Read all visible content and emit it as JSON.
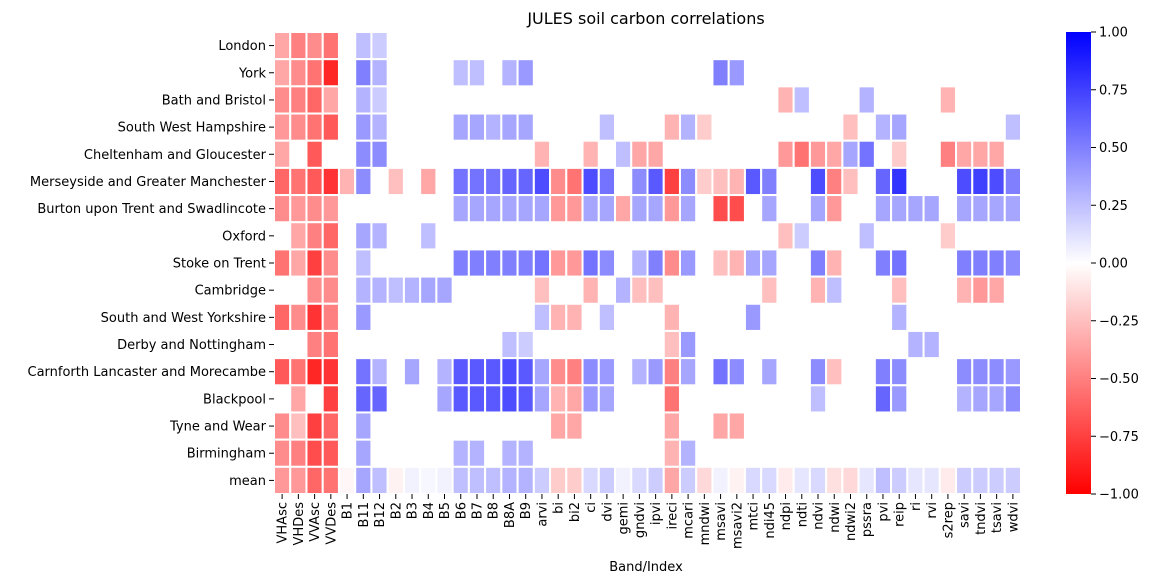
{
  "chart_data": {
    "type": "heatmap",
    "title": "JULES soil carbon correlations",
    "xlabel": "Band/Index",
    "ylabel": "",
    "columns": [
      "VHAsc",
      "VHDes",
      "VVAsc",
      "VVDes",
      "B1",
      "B11",
      "B12",
      "B2",
      "B3",
      "B4",
      "B5",
      "B6",
      "B7",
      "B8",
      "B8A",
      "B9",
      "arvi",
      "bi",
      "bi2",
      "ci",
      "dvi",
      "gemi",
      "gndvi",
      "ipvi",
      "ireci",
      "mcari",
      "mndwi",
      "msavi",
      "msavi2",
      "mtci",
      "ndi45",
      "ndpi",
      "ndti",
      "ndvi",
      "ndwi",
      "ndwi2",
      "pssra",
      "pvi",
      "reip",
      "ri",
      "rvi",
      "s2rep",
      "savi",
      "tndvi",
      "tsavi",
      "wdvi"
    ],
    "x_tick_labels": [
      "VHAsc",
      "VVAsc",
      "B1",
      "B12",
      "B3",
      "B5",
      "B7",
      "B8A",
      "arvi",
      "bi2",
      "dvi",
      "gndvi",
      "ireci",
      "mndwi",
      "msavi2",
      "ndi45",
      "ndti",
      "ndwi",
      "pssra",
      "reip",
      "rvi",
      "savi",
      "tsavi"
    ],
    "x_tick_labels_lower": [
      "VHDes",
      "VVDes",
      "B11",
      "B2",
      "B4",
      "B6",
      "B8",
      "B9",
      "bi",
      "ci",
      "gemi",
      "ipvi",
      "mcari",
      "msavi",
      "mtci",
      "ndpi",
      "ndvi",
      "ndwi2",
      "pvi",
      "ri",
      "s2rep",
      "tndvi",
      "wdvi"
    ],
    "rows": [
      "London",
      "York",
      "Bath and Bristol",
      "South West Hampshire",
      "Cheltenham and Gloucester",
      "Merseyside and Greater Manchester",
      "Burton upon Trent and Swadlincote",
      "Oxford",
      "Stoke on Trent",
      "Cambridge",
      "South and West Yorkshire",
      "Derby and Nottingham",
      "Carnforth Lancaster and Morecambe",
      "Blackpool",
      "Tyne and Wear",
      "Birmingham",
      "mean"
    ],
    "values": [
      [
        -0.35,
        -0.5,
        -0.45,
        -0.55,
        null,
        0.25,
        0.2,
        null,
        null,
        null,
        null,
        null,
        null,
        null,
        null,
        null,
        null,
        null,
        null,
        null,
        null,
        null,
        null,
        null,
        null,
        null,
        null,
        null,
        null,
        null,
        null,
        null,
        null,
        null,
        null,
        null,
        null,
        null,
        null,
        null,
        null,
        null,
        null,
        null,
        null,
        null
      ],
      [
        -0.35,
        -0.45,
        -0.55,
        -0.85,
        null,
        0.5,
        0.3,
        null,
        null,
        null,
        null,
        0.25,
        0.25,
        null,
        0.3,
        0.4,
        null,
        null,
        null,
        null,
        null,
        null,
        null,
        null,
        null,
        null,
        null,
        0.5,
        0.4,
        null,
        null,
        null,
        null,
        null,
        null,
        null,
        null,
        null,
        null,
        null,
        null,
        null,
        null,
        null,
        null,
        null
      ],
      [
        -0.45,
        -0.5,
        -0.6,
        -0.35,
        null,
        0.3,
        0.2,
        null,
        null,
        null,
        null,
        null,
        null,
        null,
        null,
        null,
        null,
        null,
        null,
        null,
        null,
        null,
        null,
        null,
        null,
        null,
        null,
        null,
        null,
        null,
        null,
        -0.3,
        0.25,
        null,
        null,
        null,
        0.3,
        null,
        null,
        null,
        null,
        -0.3,
        null,
        null,
        null,
        null
      ],
      [
        -0.4,
        -0.45,
        -0.55,
        -0.65,
        null,
        0.4,
        0.3,
        null,
        null,
        null,
        null,
        0.35,
        0.35,
        0.3,
        0.35,
        0.35,
        null,
        null,
        null,
        null,
        0.25,
        null,
        null,
        null,
        -0.3,
        0.3,
        -0.2,
        null,
        null,
        null,
        null,
        null,
        null,
        null,
        null,
        -0.25,
        null,
        0.3,
        0.35,
        null,
        null,
        null,
        null,
        null,
        null,
        0.25
      ],
      [
        -0.35,
        null,
        -0.65,
        null,
        null,
        0.45,
        0.45,
        null,
        null,
        null,
        null,
        null,
        null,
        null,
        null,
        null,
        -0.3,
        null,
        null,
        -0.3,
        null,
        0.25,
        -0.35,
        -0.35,
        null,
        null,
        null,
        null,
        null,
        null,
        null,
        -0.4,
        -0.55,
        -0.4,
        -0.35,
        0.35,
        0.55,
        null,
        -0.2,
        null,
        null,
        -0.5,
        -0.35,
        -0.35,
        -0.35,
        null
      ],
      [
        -0.6,
        -0.55,
        -0.65,
        -0.8,
        -0.3,
        0.45,
        null,
        -0.25,
        null,
        -0.35,
        null,
        0.55,
        0.55,
        0.55,
        0.6,
        0.6,
        0.7,
        -0.45,
        -0.55,
        0.7,
        0.55,
        null,
        0.45,
        0.65,
        -0.75,
        0.45,
        -0.2,
        -0.25,
        -0.3,
        0.65,
        0.5,
        null,
        null,
        0.7,
        -0.5,
        -0.25,
        null,
        0.6,
        0.8,
        null,
        null,
        null,
        0.7,
        0.75,
        0.7,
        0.5
      ],
      [
        -0.45,
        -0.4,
        -0.45,
        -0.4,
        null,
        null,
        null,
        null,
        null,
        null,
        null,
        0.35,
        0.35,
        0.35,
        0.35,
        0.35,
        0.35,
        -0.4,
        -0.4,
        0.35,
        0.35,
        -0.35,
        0.35,
        0.35,
        -0.4,
        0.35,
        null,
        -0.7,
        -0.7,
        null,
        0.35,
        null,
        null,
        0.35,
        -0.4,
        null,
        null,
        0.35,
        0.35,
        0.35,
        0.35,
        null,
        0.35,
        0.35,
        0.35,
        0.35
      ],
      [
        null,
        -0.35,
        -0.5,
        -0.6,
        null,
        0.35,
        0.3,
        null,
        null,
        0.25,
        null,
        null,
        null,
        null,
        null,
        null,
        null,
        null,
        null,
        null,
        null,
        null,
        null,
        null,
        null,
        null,
        null,
        null,
        null,
        null,
        null,
        -0.25,
        0.2,
        null,
        null,
        null,
        0.25,
        null,
        null,
        null,
        null,
        -0.2,
        null,
        null,
        null,
        null
      ],
      [
        -0.55,
        -0.35,
        -0.75,
        -0.45,
        null,
        0.25,
        null,
        null,
        null,
        null,
        null,
        0.5,
        0.5,
        0.5,
        0.5,
        0.5,
        0.55,
        -0.4,
        -0.4,
        0.55,
        0.45,
        null,
        0.3,
        0.5,
        -0.45,
        0.4,
        null,
        -0.25,
        -0.3,
        0.35,
        0.35,
        null,
        null,
        0.5,
        -0.3,
        null,
        null,
        0.5,
        0.55,
        null,
        null,
        null,
        0.5,
        0.5,
        0.5,
        0.45
      ],
      [
        null,
        null,
        -0.45,
        -0.45,
        null,
        0.3,
        0.3,
        0.25,
        0.3,
        0.35,
        0.35,
        null,
        null,
        null,
        null,
        null,
        -0.25,
        null,
        null,
        -0.3,
        null,
        0.3,
        -0.25,
        -0.25,
        null,
        null,
        null,
        null,
        null,
        null,
        -0.25,
        null,
        null,
        -0.3,
        0.25,
        null,
        null,
        null,
        -0.25,
        null,
        null,
        null,
        -0.3,
        -0.4,
        -0.35,
        null
      ],
      [
        -0.6,
        -0.45,
        -0.8,
        -0.5,
        null,
        0.4,
        null,
        null,
        null,
        null,
        null,
        null,
        null,
        null,
        null,
        null,
        0.25,
        -0.3,
        -0.3,
        null,
        0.25,
        null,
        null,
        null,
        -0.3,
        null,
        null,
        null,
        null,
        0.4,
        null,
        null,
        null,
        null,
        null,
        null,
        null,
        null,
        0.3,
        null,
        null,
        null,
        null,
        null,
        null,
        null
      ],
      [
        null,
        null,
        -0.5,
        -0.55,
        null,
        null,
        null,
        null,
        null,
        null,
        null,
        null,
        null,
        null,
        0.25,
        0.2,
        null,
        null,
        null,
        null,
        null,
        null,
        null,
        null,
        -0.25,
        0.4,
        null,
        null,
        null,
        null,
        null,
        null,
        null,
        null,
        null,
        null,
        null,
        null,
        null,
        0.3,
        0.3,
        null,
        null,
        null,
        null,
        null
      ],
      [
        -0.65,
        -0.55,
        -0.85,
        -0.8,
        null,
        0.55,
        0.3,
        null,
        0.35,
        null,
        0.3,
        0.65,
        0.65,
        0.65,
        0.7,
        0.65,
        0.35,
        -0.45,
        -0.5,
        0.45,
        0.4,
        null,
        0.3,
        0.4,
        -0.5,
        0.35,
        null,
        0.55,
        0.45,
        null,
        0.35,
        null,
        null,
        0.45,
        -0.25,
        null,
        null,
        0.5,
        0.45,
        null,
        null,
        null,
        0.45,
        0.45,
        0.45,
        0.4
      ],
      [
        null,
        -0.35,
        null,
        -0.75,
        null,
        0.6,
        0.6,
        null,
        null,
        null,
        0.35,
        0.65,
        0.65,
        0.65,
        0.7,
        0.65,
        0.35,
        -0.3,
        -0.35,
        0.4,
        0.35,
        null,
        null,
        null,
        -0.55,
        null,
        null,
        null,
        null,
        null,
        null,
        null,
        null,
        0.25,
        null,
        null,
        null,
        0.6,
        0.4,
        null,
        null,
        null,
        0.3,
        0.35,
        0.35,
        0.45
      ],
      [
        -0.45,
        -0.25,
        -0.75,
        -0.6,
        null,
        0.35,
        null,
        null,
        null,
        null,
        null,
        null,
        null,
        null,
        null,
        null,
        null,
        -0.35,
        -0.35,
        null,
        null,
        null,
        null,
        null,
        -0.35,
        null,
        null,
        -0.35,
        -0.35,
        null,
        null,
        null,
        null,
        null,
        null,
        null,
        null,
        null,
        null,
        null,
        null,
        null,
        null,
        null,
        null,
        null
      ],
      [
        -0.45,
        -0.5,
        -0.7,
        -0.65,
        null,
        0.35,
        null,
        null,
        null,
        null,
        null,
        0.3,
        0.3,
        null,
        0.3,
        0.3,
        null,
        null,
        null,
        null,
        null,
        null,
        null,
        null,
        -0.3,
        0.3,
        null,
        null,
        null,
        null,
        null,
        null,
        null,
        null,
        null,
        null,
        null,
        null,
        null,
        null,
        null,
        null,
        null,
        null,
        null,
        null
      ],
      [
        -0.4,
        -0.4,
        -0.6,
        -0.55,
        -0.03,
        0.35,
        0.25,
        -0.05,
        0.05,
        0.03,
        0.05,
        0.25,
        0.25,
        0.25,
        0.3,
        0.3,
        0.2,
        -0.2,
        -0.2,
        0.15,
        0.2,
        0.05,
        0.15,
        0.2,
        -0.35,
        0.2,
        -0.15,
        0.05,
        -0.05,
        0.15,
        0.15,
        -0.08,
        0.1,
        0.15,
        -0.12,
        -0.15,
        0.1,
        0.25,
        0.2,
        0.1,
        0.1,
        -0.08,
        0.2,
        0.2,
        0.2,
        0.2
      ]
    ],
    "vmin": -1,
    "vmax": 1,
    "colormap": "bwr",
    "colorbar_ticks": [
      "1.00",
      "0.75",
      "0.50",
      "0.25",
      "0.00",
      "−0.25",
      "−0.50",
      "−0.75",
      "−1.00"
    ],
    "colorbar_values": [
      1,
      0.75,
      0.5,
      0.25,
      0,
      -0.25,
      -0.5,
      -0.75,
      -1
    ]
  }
}
